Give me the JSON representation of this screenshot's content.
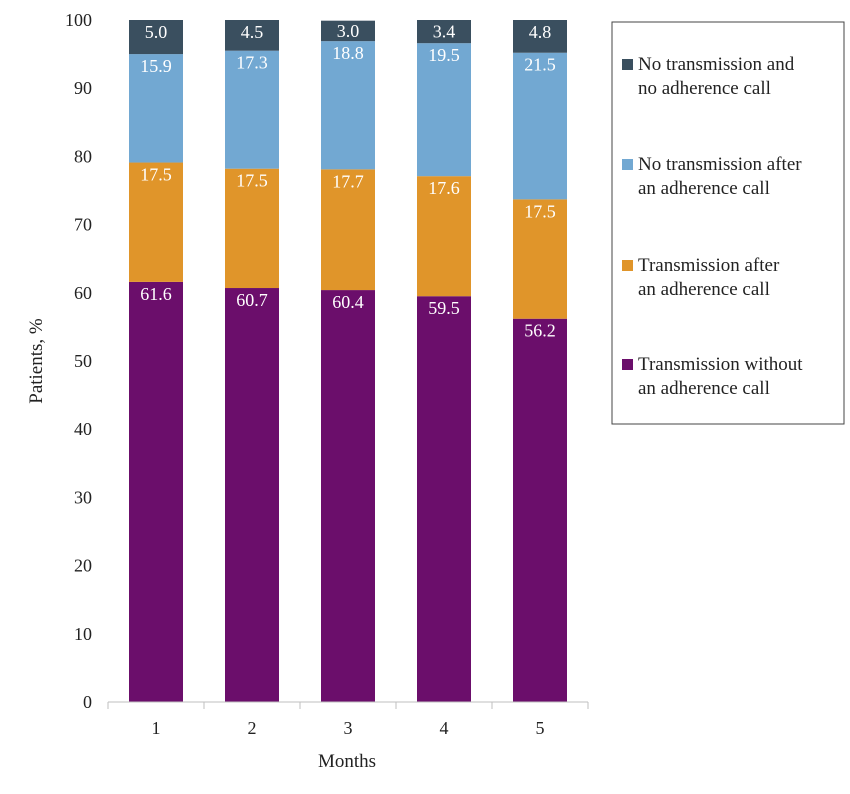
{
  "chart_data": {
    "type": "bar",
    "stacked": true,
    "categories": [
      "1",
      "2",
      "3",
      "4",
      "5"
    ],
    "xlabel": "Months",
    "ylabel": "Patients, %",
    "ylim": [
      0,
      100
    ],
    "yticks": [
      0,
      10,
      20,
      30,
      40,
      50,
      60,
      70,
      80,
      90,
      100
    ],
    "grid": false,
    "legend_position": "right",
    "series": [
      {
        "name": "Transmission without an adherence call",
        "legend_lines": [
          "Transmission without",
          "an adherence call"
        ],
        "color": "#6b0e6b",
        "values": [
          61.6,
          60.7,
          60.4,
          59.5,
          56.2
        ],
        "labels": [
          "61.6",
          "60.7",
          "60.4",
          "59.5",
          "56.2"
        ]
      },
      {
        "name": "Transmission after an adherence call",
        "legend_lines": [
          "Transmission after",
          "an adherence call"
        ],
        "color": "#e0952a",
        "values": [
          17.5,
          17.5,
          17.7,
          17.6,
          17.5
        ],
        "labels": [
          "17.5",
          "17.5",
          "17.7",
          "17.6",
          "17.5"
        ]
      },
      {
        "name": "No transmission after an adherence call",
        "legend_lines": [
          "No transmission after",
          " an adherence call"
        ],
        "color": "#72a8d2",
        "values": [
          15.9,
          17.3,
          18.8,
          19.5,
          21.5
        ],
        "labels": [
          "15.9",
          "17.3",
          "18.8",
          "19.5",
          "21.5"
        ]
      },
      {
        "name": "No transmission and no adherence call",
        "legend_lines": [
          "No transmission and",
          "no adherence call"
        ],
        "color": "#3a4f5f",
        "values": [
          5.0,
          4.5,
          3.0,
          3.4,
          4.8
        ],
        "labels": [
          "5.0",
          "4.5",
          "3.0",
          "3.4",
          "4.8"
        ]
      }
    ]
  }
}
